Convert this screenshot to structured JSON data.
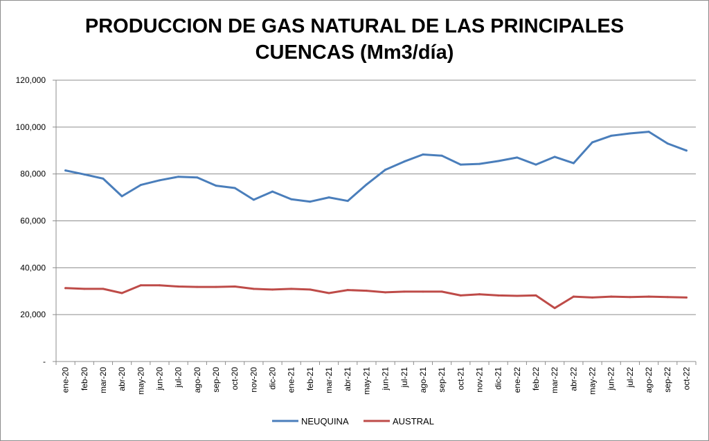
{
  "chart_data": {
    "type": "line",
    "title_line1": "PRODUCCION DE GAS NATURAL DE LAS PRINCIPALES",
    "title_line2": "CUENCAS (Mm3/día)",
    "xlabel": "",
    "ylabel": "",
    "ylim": [
      0,
      120000
    ],
    "y_ticks": [
      0,
      20000,
      40000,
      60000,
      80000,
      100000,
      120000
    ],
    "y_tick_labels": [
      "-",
      "20,000",
      "40,000",
      "60,000",
      "80,000",
      "100,000",
      "120,000"
    ],
    "grid": "horizontal",
    "legend_position": "bottom",
    "categories": [
      "ene-20",
      "feb-20",
      "mar-20",
      "abr-20",
      "may-20",
      "jun-20",
      "jul-20",
      "ago-20",
      "sep-20",
      "oct-20",
      "nov-20",
      "dic-20",
      "ene-21",
      "feb-21",
      "mar-21",
      "abr-21",
      "may-21",
      "jun-21",
      "jul-21",
      "ago-21",
      "sep-21",
      "oct-21",
      "nov-21",
      "dic-21",
      "ene-22",
      "feb-22",
      "mar-22",
      "abr-22",
      "may-22",
      "jun-22",
      "jul-22",
      "ago-22",
      "sep-22",
      "oct-22"
    ],
    "series": [
      {
        "name": "NEUQUINA",
        "color": "#4a7ebb",
        "values": [
          81500,
          79800,
          78000,
          70500,
          75300,
          77300,
          78800,
          78500,
          75000,
          74000,
          69000,
          72500,
          69200,
          68200,
          70000,
          68500,
          75500,
          81800,
          85300,
          88300,
          87800,
          84000,
          84300,
          85500,
          87000,
          84000,
          87300,
          84600,
          93500,
          96300,
          97300,
          98000,
          93000,
          90000
        ]
      },
      {
        "name": "AUSTRAL",
        "color": "#be4b48",
        "values": [
          31300,
          31000,
          31000,
          29200,
          32500,
          32500,
          32000,
          31800,
          31800,
          32000,
          31000,
          30700,
          31000,
          30700,
          29200,
          30500,
          30200,
          29500,
          29800,
          29800,
          29800,
          28200,
          28700,
          28200,
          28000,
          28200,
          22800,
          27700,
          27300,
          27700,
          27500,
          27700,
          27500,
          27300
        ]
      }
    ]
  }
}
